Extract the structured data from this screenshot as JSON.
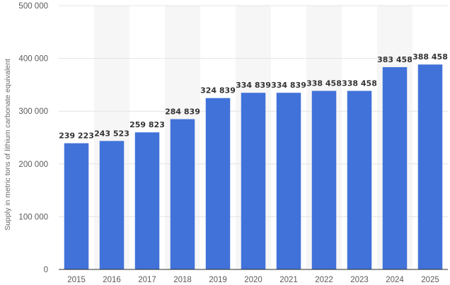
{
  "chart_data": {
    "type": "bar",
    "title": "",
    "xlabel": "",
    "ylabel": "Supply in metric tons of lithium carbonate equivalent",
    "ylim": [
      0,
      500000
    ],
    "yticks": [
      0,
      100000,
      200000,
      300000,
      400000,
      500000
    ],
    "ytick_labels": [
      "0",
      "100 000",
      "200 000",
      "300 000",
      "400 000",
      "500 000"
    ],
    "categories": [
      "2015",
      "2016",
      "2017",
      "2018",
      "2019",
      "2020",
      "2021",
      "2022",
      "2023",
      "2024",
      "2025"
    ],
    "values": [
      239223,
      243523,
      259823,
      284839,
      324839,
      334839,
      334839,
      338458,
      338458,
      383458,
      388458
    ],
    "value_labels": [
      "239 223",
      "243 523",
      "259 823",
      "284 839",
      "324 839",
      "334 839",
      "334 839",
      "338 458",
      "338 458",
      "383 458",
      "388 458"
    ],
    "grid": true,
    "legend": "none",
    "colors": {
      "bar": "#4172d9",
      "band": "#f6f6f6",
      "grid": "#e4e4e4"
    }
  }
}
